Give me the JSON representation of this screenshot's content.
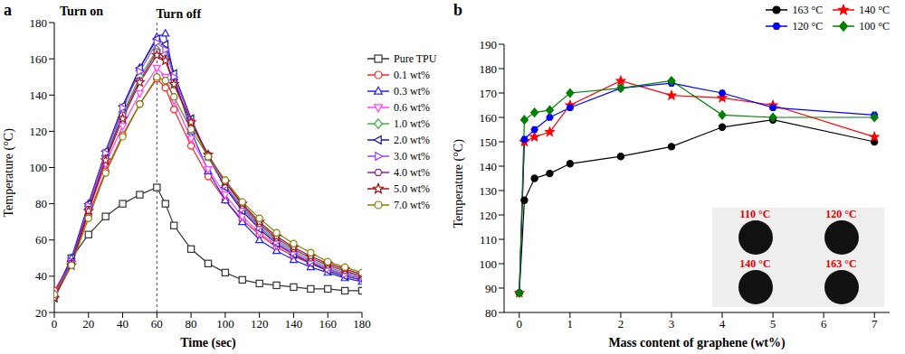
{
  "chart_data": [
    {
      "type": "line",
      "panel_label": "a",
      "x_label": "Time (sec)",
      "y_label": "Temperature (°C)",
      "x": [
        0,
        10,
        20,
        30,
        40,
        50,
        60,
        65,
        70,
        80,
        90,
        100,
        110,
        120,
        130,
        140,
        150,
        160,
        170,
        180
      ],
      "xlim": [
        0,
        180
      ],
      "xticks": [
        0,
        20,
        40,
        60,
        80,
        100,
        120,
        140,
        160,
        180
      ],
      "ylim": [
        20,
        180
      ],
      "yticks": [
        20,
        40,
        60,
        80,
        100,
        120,
        140,
        160,
        180
      ],
      "legend": "right",
      "annotations": [
        {
          "text": "Turn on"
        },
        {
          "text": "Turn off",
          "x": 60
        }
      ],
      "series": [
        {
          "name": "Pure TPU",
          "color": "#333333",
          "marker": "square",
          "values": [
            30,
            50,
            63,
            73,
            80,
            85,
            89,
            80,
            68,
            55,
            47,
            42,
            38,
            36,
            35,
            34,
            33,
            33,
            32,
            32
          ]
        },
        {
          "name": "0.1 wt%",
          "color": "#ff2020",
          "marker": "circle",
          "values": [
            32,
            48,
            74,
            98,
            118,
            135,
            149,
            144,
            132,
            112,
            95,
            82,
            71,
            63,
            56,
            51,
            47,
            44,
            41,
            39
          ]
        },
        {
          "name": "0.3 wt%",
          "color": "#2020ff",
          "marker": "triangle-up",
          "values": [
            30,
            50,
            80,
            108,
            132,
            155,
            172,
            174,
            150,
            120,
            98,
            82,
            70,
            60,
            54,
            49,
            45,
            42,
            39,
            37
          ]
        },
        {
          "name": "0.6 wt%",
          "color": "#ff40ff",
          "marker": "triangle-down",
          "values": [
            30,
            48,
            76,
            102,
            123,
            141,
            155,
            150,
            137,
            116,
            99,
            85,
            73,
            64,
            57,
            52,
            48,
            44,
            41,
            39
          ]
        },
        {
          "name": "1.0 wt%",
          "color": "#40b040",
          "marker": "diamond",
          "values": [
            28,
            47,
            78,
            106,
            130,
            150,
            165,
            160,
            146,
            124,
            106,
            90,
            78,
            68,
            60,
            54,
            49,
            45,
            42,
            40
          ]
        },
        {
          "name": "2.0 wt%",
          "color": "#1a1a90",
          "marker": "triangle-left",
          "values": [
            28,
            48,
            80,
            109,
            134,
            155,
            171,
            168,
            152,
            127,
            106,
            89,
            76,
            66,
            58,
            52,
            47,
            43,
            40,
            38
          ]
        },
        {
          "name": "3.0 wt%",
          "color": "#a040ff",
          "marker": "triangle-right",
          "values": [
            29,
            48,
            79,
            108,
            133,
            153,
            169,
            165,
            150,
            126,
            106,
            90,
            77,
            67,
            59,
            53,
            48,
            44,
            41,
            39
          ]
        },
        {
          "name": "4.0 wt%",
          "color": "#902090",
          "marker": "hexagon",
          "values": [
            29,
            47,
            77,
            105,
            129,
            148,
            164,
            160,
            147,
            125,
            107,
            92,
            79,
            69,
            61,
            55,
            50,
            46,
            43,
            40
          ]
        },
        {
          "name": "5.0 wt%",
          "color": "#a01010",
          "marker": "star",
          "values": [
            28,
            46,
            76,
            104,
            127,
            147,
            162,
            159,
            146,
            125,
            107,
            92,
            80,
            70,
            62,
            56,
            51,
            47,
            44,
            41
          ]
        },
        {
          "name": "7.0 wt%",
          "color": "#808000",
          "marker": "circle",
          "values": [
            30,
            46,
            72,
            97,
            117,
            135,
            150,
            148,
            139,
            121,
            106,
            93,
            81,
            72,
            64,
            58,
            53,
            48,
            45,
            42
          ]
        }
      ]
    },
    {
      "type": "line",
      "panel_label": "b",
      "x_label": "Mass content of graphene (wt%)",
      "y_label": "Temperature (°C)",
      "x": [
        0,
        0.1,
        0.3,
        0.6,
        1,
        2,
        3,
        4,
        5,
        7
      ],
      "xlim": [
        -0.3,
        7.3
      ],
      "xticks": [
        0,
        1,
        2,
        3,
        4,
        5,
        6,
        7
      ],
      "ylim": [
        80,
        190
      ],
      "yticks": [
        80,
        90,
        100,
        110,
        120,
        130,
        140,
        150,
        160,
        170,
        180,
        190
      ],
      "legend": "upper right",
      "annotations": [
        {
          "text": "110 °C"
        },
        {
          "text": "120 °C"
        },
        {
          "text": "140 °C"
        },
        {
          "text": "163 °C"
        }
      ],
      "series": [
        {
          "name": "163 °C",
          "color": "#000000",
          "marker": "circle",
          "values": [
            88,
            126,
            135,
            137,
            141,
            144,
            148,
            156,
            159,
            150
          ]
        },
        {
          "name": "140 °C",
          "color": "#ff0000",
          "marker": "star",
          "values": [
            88,
            150,
            152,
            154,
            165,
            175,
            169,
            168,
            165,
            152
          ]
        },
        {
          "name": "120 °C",
          "color": "#0000ff",
          "marker": "hexagon",
          "values": [
            88,
            151,
            155,
            160,
            164,
            172,
            174,
            170,
            164,
            161
          ]
        },
        {
          "name": "100 °C",
          "color": "#008000",
          "marker": "diamond",
          "values": [
            88,
            159,
            162,
            163,
            170,
            172,
            175,
            161,
            160,
            160
          ]
        }
      ]
    }
  ]
}
